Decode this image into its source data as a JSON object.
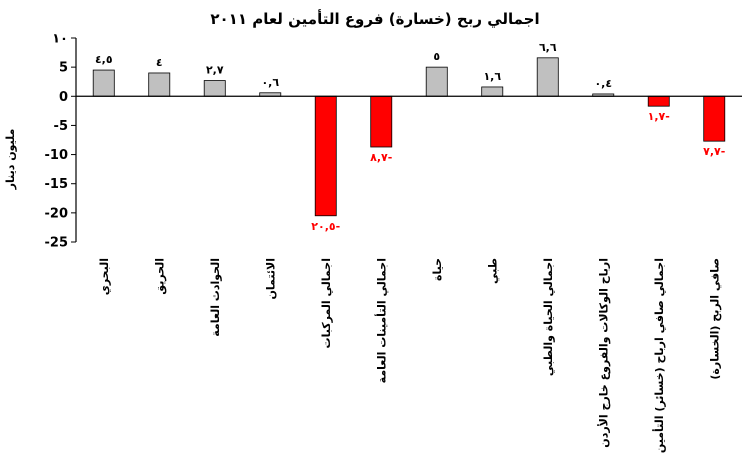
{
  "chart_data": {
    "type": "bar",
    "title": "اجمالي ربح (خسارة) فروع التأمين لعام ٢٠١١",
    "ylabel": "مليون دينار",
    "xlabel": "",
    "ylim": [
      -25,
      10
    ],
    "yticks": [
      10,
      5,
      0,
      -5,
      -10,
      -15,
      -20,
      -25
    ],
    "ytick_labels": [
      "١٠",
      "5",
      "0",
      "-5",
      "-10",
      "-15",
      "-20",
      "-25"
    ],
    "grid": false,
    "legend": "none",
    "categories": [
      "البحري",
      "الحريق",
      "الحوادث العامة",
      "الائتمان",
      "اجمالي المركبات",
      "اجمالي التأمينات العامة",
      "حياة",
      "طبي",
      "اجمالي الحياة والطبي",
      "ارباح الوكالات والفروع خارج الأردن",
      "اجمالي صافي ارباح (خسائر) التأمين",
      "صافي الربح (الخسارة)"
    ],
    "values": [
      4.5,
      4,
      2.7,
      0.6,
      -20.5,
      -8.7,
      5,
      1.6,
      6.6,
      0.4,
      -1.7,
      -7.7
    ],
    "data_labels": [
      "٤,٥",
      "٤",
      "٢,٧",
      "٠,٦",
      "٢٠,٥-",
      "٨,٧-",
      "٥",
      "١,٦",
      "٦,٦",
      "٠,٤",
      "١,٧-",
      "٧,٧-"
    ],
    "colors": {
      "positive": "#c0c0c0",
      "negative": "#ff0000",
      "axis": "#000000",
      "negative_label": "#ff0000",
      "positive_label": "#000000"
    }
  }
}
